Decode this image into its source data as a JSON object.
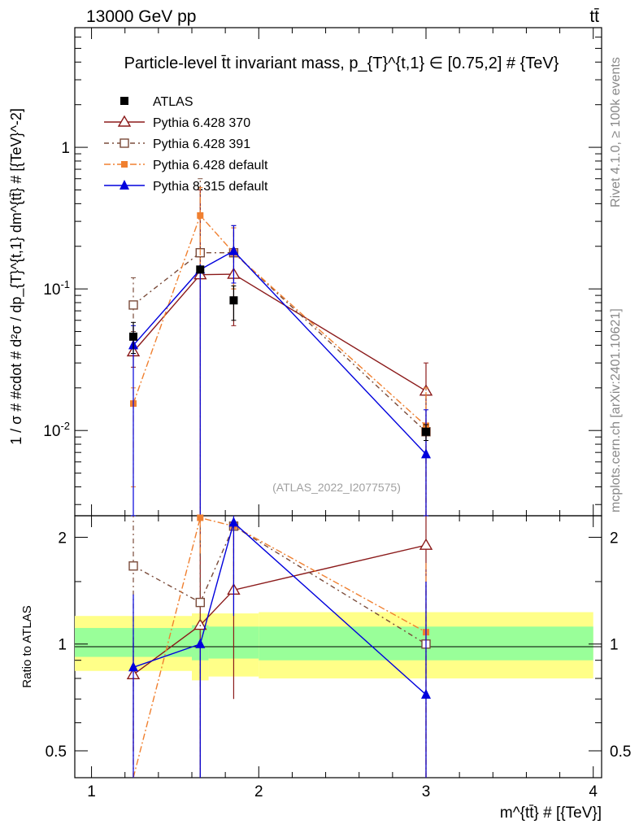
{
  "header": {
    "energy": "13000 GeV pp",
    "process": "tt̄"
  },
  "side_labels": {
    "rivet": "Rivet 4.1.0, ≥ 100k events",
    "source": "mcplots.cern.ch [arXiv:2401.10621]"
  },
  "chart_data": {
    "type": "line",
    "title": "Particle-level t̄t invariant mass, p_{T}^{t,1} ∈ [0.75,2] # {TeV}",
    "analysis_id": "(ATLAS_2022_I2077575)",
    "xlabel": "m^{tt̄} # [{TeV}]",
    "ylabel_main": "1 / σ # #cdot # d²σ / dp_{T}^{t,1} dm^{tt̄} # [{TeV}^-2]",
    "ylabel_ratio": "Ratio to ATLAS",
    "xlim": [
      0.9,
      4.05
    ],
    "ylim_main": [
      0.0025,
      7
    ],
    "ylim_ratio": [
      0.42,
      2.3
    ],
    "yscale_main": "log",
    "yscale_ratio": "log",
    "x_ticks": [
      "1",
      "2",
      "3",
      "4"
    ],
    "y_ticks_main": [
      "10^-2",
      "10^-1",
      "1"
    ],
    "y_ticks_ratio": [
      "0.5",
      "1",
      "2"
    ],
    "legend_position": "top-left",
    "bins": [
      [
        0.9,
        1.6
      ],
      [
        1.6,
        1.7
      ],
      [
        1.7,
        2.0
      ],
      [
        2.0,
        4.0
      ]
    ],
    "band_yellow": [
      [
        0.84,
        1.2
      ],
      [
        0.79,
        1.22
      ],
      [
        0.81,
        1.22
      ],
      [
        0.8,
        1.23
      ]
    ],
    "band_green": [
      [
        0.92,
        1.11
      ],
      [
        0.9,
        1.13
      ],
      [
        0.91,
        1.12
      ],
      [
        0.9,
        1.12
      ]
    ],
    "x": [
      1.25,
      1.65,
      1.85,
      3.0
    ],
    "series": [
      {
        "name": "ATLAS",
        "color": "#000000",
        "marker": "filled-square",
        "dash": "none",
        "values": [
          0.046,
          0.137,
          0.083,
          0.0098
        ],
        "err_lo": [
          0.035,
          0.13,
          0.06,
          0.0085
        ],
        "err_hi": [
          0.058,
          0.145,
          0.105,
          0.011
        ]
      },
      {
        "name": "Pythia 6.428 370",
        "color": "#8b1a1a",
        "marker": "open-triangle",
        "dash": "none",
        "values": [
          0.036,
          0.126,
          0.127,
          0.019
        ],
        "err_lo": [
          0.028,
          0.0001,
          0.055,
          0.0001
        ],
        "err_hi": [
          0.046,
          0.5,
          0.27,
          0.03
        ],
        "ratio": [
          0.82,
          1.13,
          1.42,
          1.9
        ],
        "ratio_lo": [
          0.5,
          0.3,
          0.7,
          0.3
        ],
        "ratio_hi": [
          1.05,
          2.1,
          2.1,
          2.3
        ]
      },
      {
        "name": "Pythia 6.428 391",
        "color": "#7a4b3a",
        "marker": "open-square",
        "dash": "6,4,2,4",
        "values": [
          0.077,
          0.18,
          0.18,
          0.0098
        ],
        "err_lo": [
          0.05,
          0.0001,
          0.1,
          0.0001
        ],
        "err_hi": [
          0.12,
          0.6,
          0.28,
          0.02
        ],
        "ratio": [
          1.66,
          1.31,
          2.15,
          1.0
        ],
        "ratio_lo": [
          0.3,
          0.3,
          1.4,
          0.3
        ],
        "ratio_hi": [
          2.3,
          2.3,
          2.3,
          1.5
        ]
      },
      {
        "name": "Pythia 6.428 default",
        "color": "#f08030",
        "marker": "filled-square-small",
        "dash": "8,3,2,3",
        "values": [
          0.0155,
          0.33,
          0.18,
          0.0108
        ],
        "err_lo": [
          0.004,
          0.0001,
          0.1,
          0.0001
        ],
        "err_hi": [
          0.02,
          0.52,
          0.27,
          0.02
        ],
        "ratio": [
          0.34,
          2.27,
          2.15,
          1.08
        ],
        "ratio_lo": [
          0.1,
          1.8,
          1.5,
          0.3
        ],
        "ratio_hi": [
          0.6,
          2.3,
          2.3,
          1.7
        ]
      },
      {
        "name": "Pythia 8.315 default",
        "color": "#0000dd",
        "marker": "filled-triangle",
        "dash": "none",
        "values": [
          0.04,
          0.137,
          0.185,
          0.0068
        ],
        "err_lo": [
          0.0001,
          0.0001,
          0.11,
          0.0001
        ],
        "err_hi": [
          0.055,
          0.145,
          0.28,
          0.014
        ],
        "ratio": [
          0.86,
          1.0,
          2.2,
          0.72
        ],
        "ratio_lo": [
          0.3,
          0.3,
          1.2,
          0.3
        ],
        "ratio_hi": [
          1.38,
          1.0,
          2.3,
          1.5
        ]
      }
    ]
  }
}
